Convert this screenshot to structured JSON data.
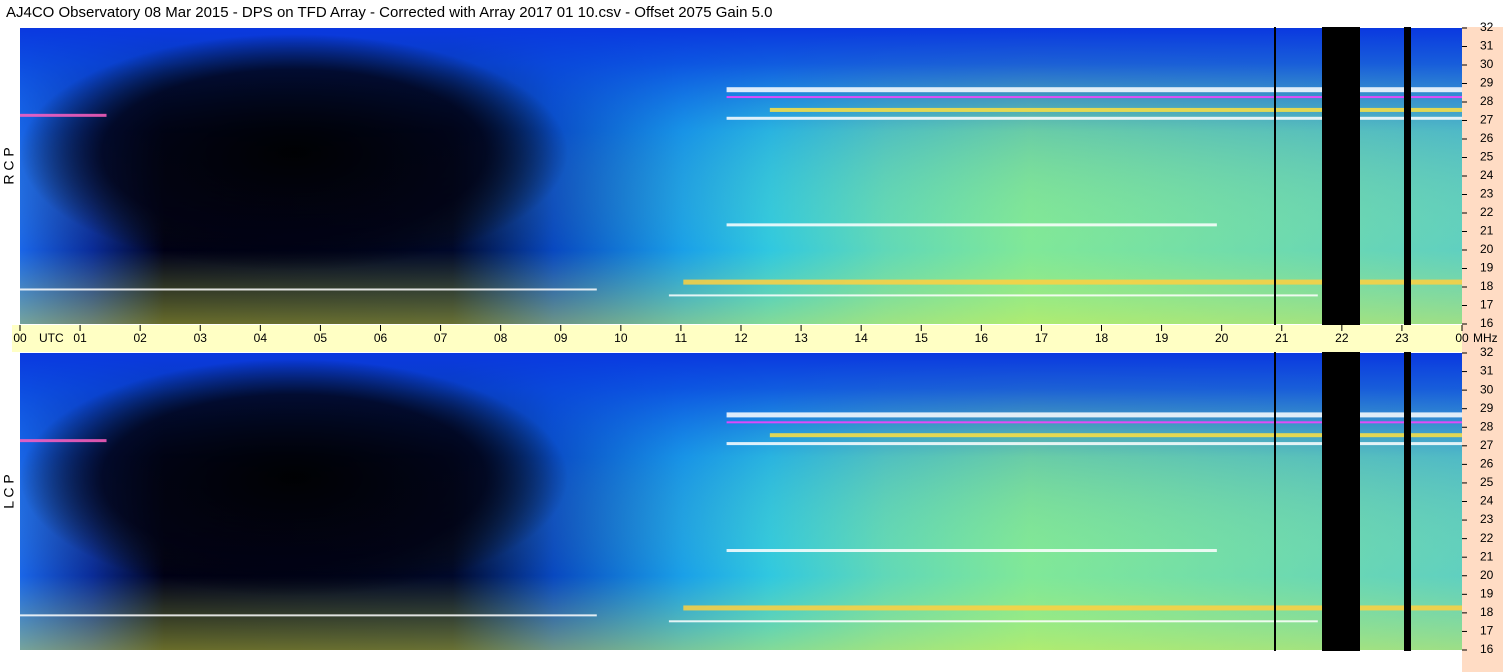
{
  "header": {
    "title": "AJ4CO Observatory  08 Mar 2015  -  DPS on TFD Array  -  Corrected with Array 2017 01 10.csv  -  Offset 2075  Gain 5.0"
  },
  "chart_data": [
    {
      "type": "spectrogram",
      "ylabel": "R C P",
      "xlabel": "UTC",
      "yunit": "MHz",
      "xlim": [
        0,
        24
      ],
      "xticks": [
        {
          "value": 0,
          "label": "00"
        },
        {
          "value": 1,
          "label": "01"
        },
        {
          "value": 2,
          "label": "02"
        },
        {
          "value": 3,
          "label": "03"
        },
        {
          "value": 4,
          "label": "04"
        },
        {
          "value": 5,
          "label": "05"
        },
        {
          "value": 6,
          "label": "06"
        },
        {
          "value": 7,
          "label": "07"
        },
        {
          "value": 8,
          "label": "08"
        },
        {
          "value": 9,
          "label": "09"
        },
        10,
        11,
        12,
        13,
        14,
        15,
        16,
        17,
        18,
        19,
        20,
        21,
        22,
        23,
        {
          "value": 24,
          "label": "00"
        }
      ],
      "ylim": [
        16,
        32
      ],
      "yticks": [
        16,
        17,
        18,
        19,
        20,
        21,
        22,
        23,
        24,
        25,
        26,
        27,
        28,
        29,
        30,
        31,
        32
      ]
    },
    {
      "type": "spectrogram",
      "ylabel": "L C P",
      "ylim": [
        16,
        32
      ],
      "yticks": [
        16,
        17,
        18,
        19,
        20,
        21,
        22,
        23,
        24,
        25,
        26,
        27,
        28,
        29,
        30,
        31,
        32
      ]
    }
  ]
}
